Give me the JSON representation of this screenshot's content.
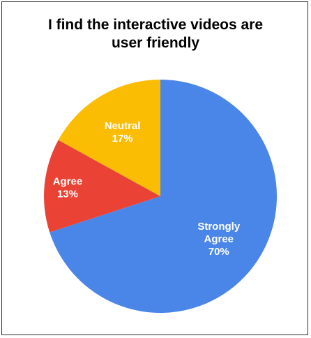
{
  "chart_data": {
    "type": "pie",
    "title": "I find the interactive videos are user friendly",
    "title_lines": [
      "I find the interactive videos are",
      "user friendly"
    ],
    "slices": [
      {
        "name": "Strongly Agree",
        "label_lines": [
          "Strongly",
          "Agree"
        ],
        "value": 70,
        "value_label": "70%",
        "color": "#4a86e8"
      },
      {
        "name": "Agree",
        "label_lines": [
          "Agree"
        ],
        "value": 13,
        "value_label": "13%",
        "color": "#ea4335"
      },
      {
        "name": "Neutral",
        "label_lines": [
          "Neutral"
        ],
        "value": 17,
        "value_label": "17%",
        "color": "#fbbc04"
      }
    ],
    "legend": "none"
  }
}
